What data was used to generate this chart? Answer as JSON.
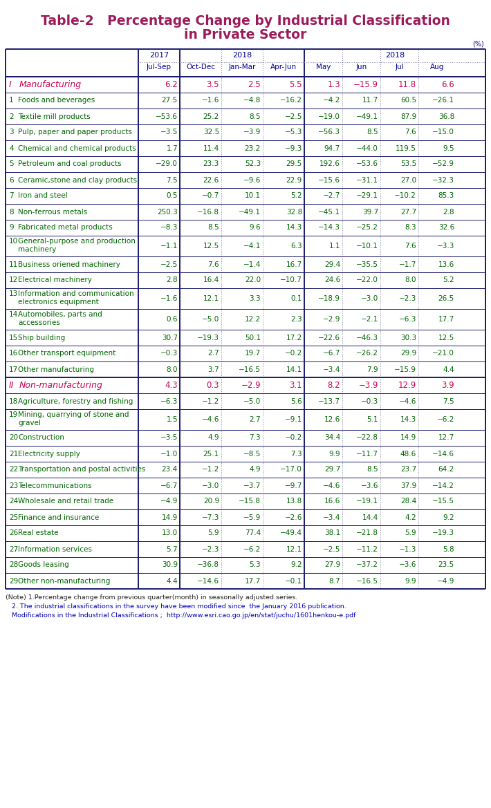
{
  "title_line1": "Table-2   Percentage Change by Industrial Classification",
  "title_line2": "in Private Sector",
  "title_color": "#9B1B5A",
  "unit_label": "(%)",
  "rows": [
    {
      "num": "I",
      "label": "Manufacturing",
      "is_header": true,
      "values": [
        6.2,
        3.5,
        2.5,
        5.5,
        1.3,
        -15.9,
        11.8,
        6.6
      ]
    },
    {
      "num": "1",
      "label": "Foods and beverages",
      "is_header": false,
      "values": [
        27.5,
        -1.6,
        -4.8,
        -16.2,
        -4.2,
        11.7,
        60.5,
        -26.1
      ]
    },
    {
      "num": "2",
      "label": "Textile mill products",
      "is_header": false,
      "values": [
        -53.6,
        25.2,
        8.5,
        -2.5,
        -19.0,
        -49.1,
        87.9,
        36.8
      ]
    },
    {
      "num": "3",
      "label": "Pulp, paper and paper products",
      "is_header": false,
      "values": [
        -3.5,
        32.5,
        -3.9,
        -5.3,
        -56.3,
        8.5,
        7.6,
        -15.0
      ]
    },
    {
      "num": "4",
      "label": "Chemical and chemical products",
      "is_header": false,
      "values": [
        1.7,
        11.4,
        23.2,
        -9.3,
        94.7,
        -44.0,
        119.5,
        9.5
      ]
    },
    {
      "num": "5",
      "label": "Petroleum and coal products",
      "is_header": false,
      "values": [
        -29.0,
        23.3,
        52.3,
        29.5,
        192.6,
        -53.6,
        53.5,
        -52.9
      ]
    },
    {
      "num": "6",
      "label": "Ceramic,stone and clay products",
      "is_header": false,
      "values": [
        7.5,
        22.6,
        -9.6,
        22.9,
        -15.6,
        -31.1,
        27.0,
        -32.3
      ]
    },
    {
      "num": "7",
      "label": "Iron and steel",
      "is_header": false,
      "values": [
        0.5,
        -0.7,
        10.1,
        5.2,
        -2.7,
        -29.1,
        -10.2,
        85.3
      ]
    },
    {
      "num": "8",
      "label": "Non-ferrous metals",
      "is_header": false,
      "values": [
        250.3,
        -16.8,
        -49.1,
        32.8,
        -45.1,
        39.7,
        27.7,
        2.8
      ]
    },
    {
      "num": "9",
      "label": "Fabricated metal products",
      "is_header": false,
      "values": [
        -8.3,
        8.5,
        9.6,
        14.3,
        -14.3,
        -25.2,
        8.3,
        32.6
      ]
    },
    {
      "num": "10",
      "label": "General-purpose and production\nmachinery",
      "is_header": false,
      "values": [
        -1.1,
        12.5,
        -4.1,
        6.3,
        1.1,
        -10.1,
        7.6,
        -3.3
      ]
    },
    {
      "num": "11",
      "label": "Business oriened machinery",
      "is_header": false,
      "values": [
        -2.5,
        7.6,
        -1.4,
        16.7,
        29.4,
        -35.5,
        -1.7,
        13.6
      ]
    },
    {
      "num": "12",
      "label": "Electrical machinery",
      "is_header": false,
      "values": [
        2.8,
        16.4,
        22.0,
        -10.7,
        24.6,
        -22.0,
        8.0,
        5.2
      ]
    },
    {
      "num": "13",
      "label": "Information and communication\nelectronics equipment",
      "is_header": false,
      "values": [
        -1.6,
        12.1,
        3.3,
        0.1,
        -18.9,
        -3.0,
        -2.3,
        26.5
      ]
    },
    {
      "num": "14",
      "label": "Automobiles, parts and\naccessories",
      "is_header": false,
      "values": [
        0.6,
        -5.0,
        12.2,
        2.3,
        -2.9,
        -2.1,
        -6.3,
        17.7
      ]
    },
    {
      "num": "15",
      "label": "Ship building",
      "is_header": false,
      "values": [
        30.7,
        -19.3,
        50.1,
        17.2,
        -22.6,
        -46.3,
        30.3,
        12.5
      ]
    },
    {
      "num": "16",
      "label": "Other transport equipment",
      "is_header": false,
      "values": [
        -0.3,
        2.7,
        19.7,
        -0.2,
        -6.7,
        -26.2,
        29.9,
        -21.0
      ]
    },
    {
      "num": "17",
      "label": "Other manufacturing",
      "is_header": false,
      "values": [
        8.0,
        3.7,
        -16.5,
        14.1,
        -3.4,
        7.9,
        -15.9,
        4.4
      ]
    },
    {
      "num": "II",
      "label": "Non-manufacturing",
      "is_header": true,
      "values": [
        4.3,
        0.3,
        -2.9,
        3.1,
        8.2,
        -3.9,
        12.9,
        3.9
      ]
    },
    {
      "num": "18",
      "label": "Agriculture, forestry and fishing",
      "is_header": false,
      "values": [
        -6.3,
        -1.2,
        -5.0,
        5.6,
        -13.7,
        -0.3,
        -4.6,
        7.5
      ]
    },
    {
      "num": "19",
      "label": "Mining, quarrying of stone and\ngravel",
      "is_header": false,
      "values": [
        1.5,
        -4.6,
        2.7,
        -9.1,
        12.6,
        5.1,
        14.3,
        -6.2
      ]
    },
    {
      "num": "20",
      "label": "Construction",
      "is_header": false,
      "values": [
        -3.5,
        4.9,
        7.3,
        -0.2,
        34.4,
        -22.8,
        14.9,
        12.7
      ]
    },
    {
      "num": "21",
      "label": "Electricity supply",
      "is_header": false,
      "values": [
        -1.0,
        25.1,
        -8.5,
        7.3,
        9.9,
        -11.7,
        48.6,
        -14.6
      ]
    },
    {
      "num": "22",
      "label": "Transportation and postal activities",
      "is_header": false,
      "values": [
        23.4,
        -1.2,
        4.9,
        -17.0,
        29.7,
        8.5,
        23.7,
        64.2
      ]
    },
    {
      "num": "23",
      "label": "Telecommunications",
      "is_header": false,
      "values": [
        -6.7,
        -3.0,
        -3.7,
        -9.7,
        -4.6,
        -3.6,
        37.9,
        -14.2
      ]
    },
    {
      "num": "24",
      "label": "Wholesale and retail trade",
      "is_header": false,
      "values": [
        -4.9,
        20.9,
        -15.8,
        13.8,
        16.6,
        -19.1,
        28.4,
        -15.5
      ]
    },
    {
      "num": "25",
      "label": "Finance and insurance",
      "is_header": false,
      "values": [
        14.9,
        -7.3,
        -5.9,
        -2.6,
        -3.4,
        14.4,
        4.2,
        9.2
      ]
    },
    {
      "num": "26",
      "label": "Real estate",
      "is_header": false,
      "values": [
        13.0,
        5.9,
        77.4,
        -49.4,
        38.1,
        -21.8,
        5.9,
        -19.3
      ]
    },
    {
      "num": "27",
      "label": "Information services",
      "is_header": false,
      "values": [
        5.7,
        -2.3,
        -6.2,
        12.1,
        -2.5,
        -11.2,
        -1.3,
        5.8
      ]
    },
    {
      "num": "28",
      "label": "Goods leasing",
      "is_header": false,
      "values": [
        30.9,
        -36.8,
        5.3,
        9.2,
        27.9,
        -37.2,
        -3.6,
        23.5
      ]
    },
    {
      "num": "29",
      "label": "Other non-manufacturing",
      "is_header": false,
      "values": [
        4.4,
        -14.6,
        17.7,
        -0.1,
        8.7,
        -16.5,
        9.9,
        -4.9
      ]
    }
  ],
  "note_lines": [
    "(Note) 1.Percentage change from previous quarter(month) in seasonally adjusted series.",
    "   2. The industrial classifications in the survey have been modified since  the January 2016 publication.",
    "   Modifications in the Industrial Classifications ;  http://www.esri.cao.go.jp/en/stat/juchu/1601henkou-e.pdf"
  ],
  "header_text_color": "#00008B",
  "data_text_color": "#006400",
  "header_label_color": "#CC0055",
  "border_color": "#1a1a6e",
  "dotted_border_color": "#8888AA",
  "note_color1": "#222222",
  "note_color2": "#0000BB"
}
